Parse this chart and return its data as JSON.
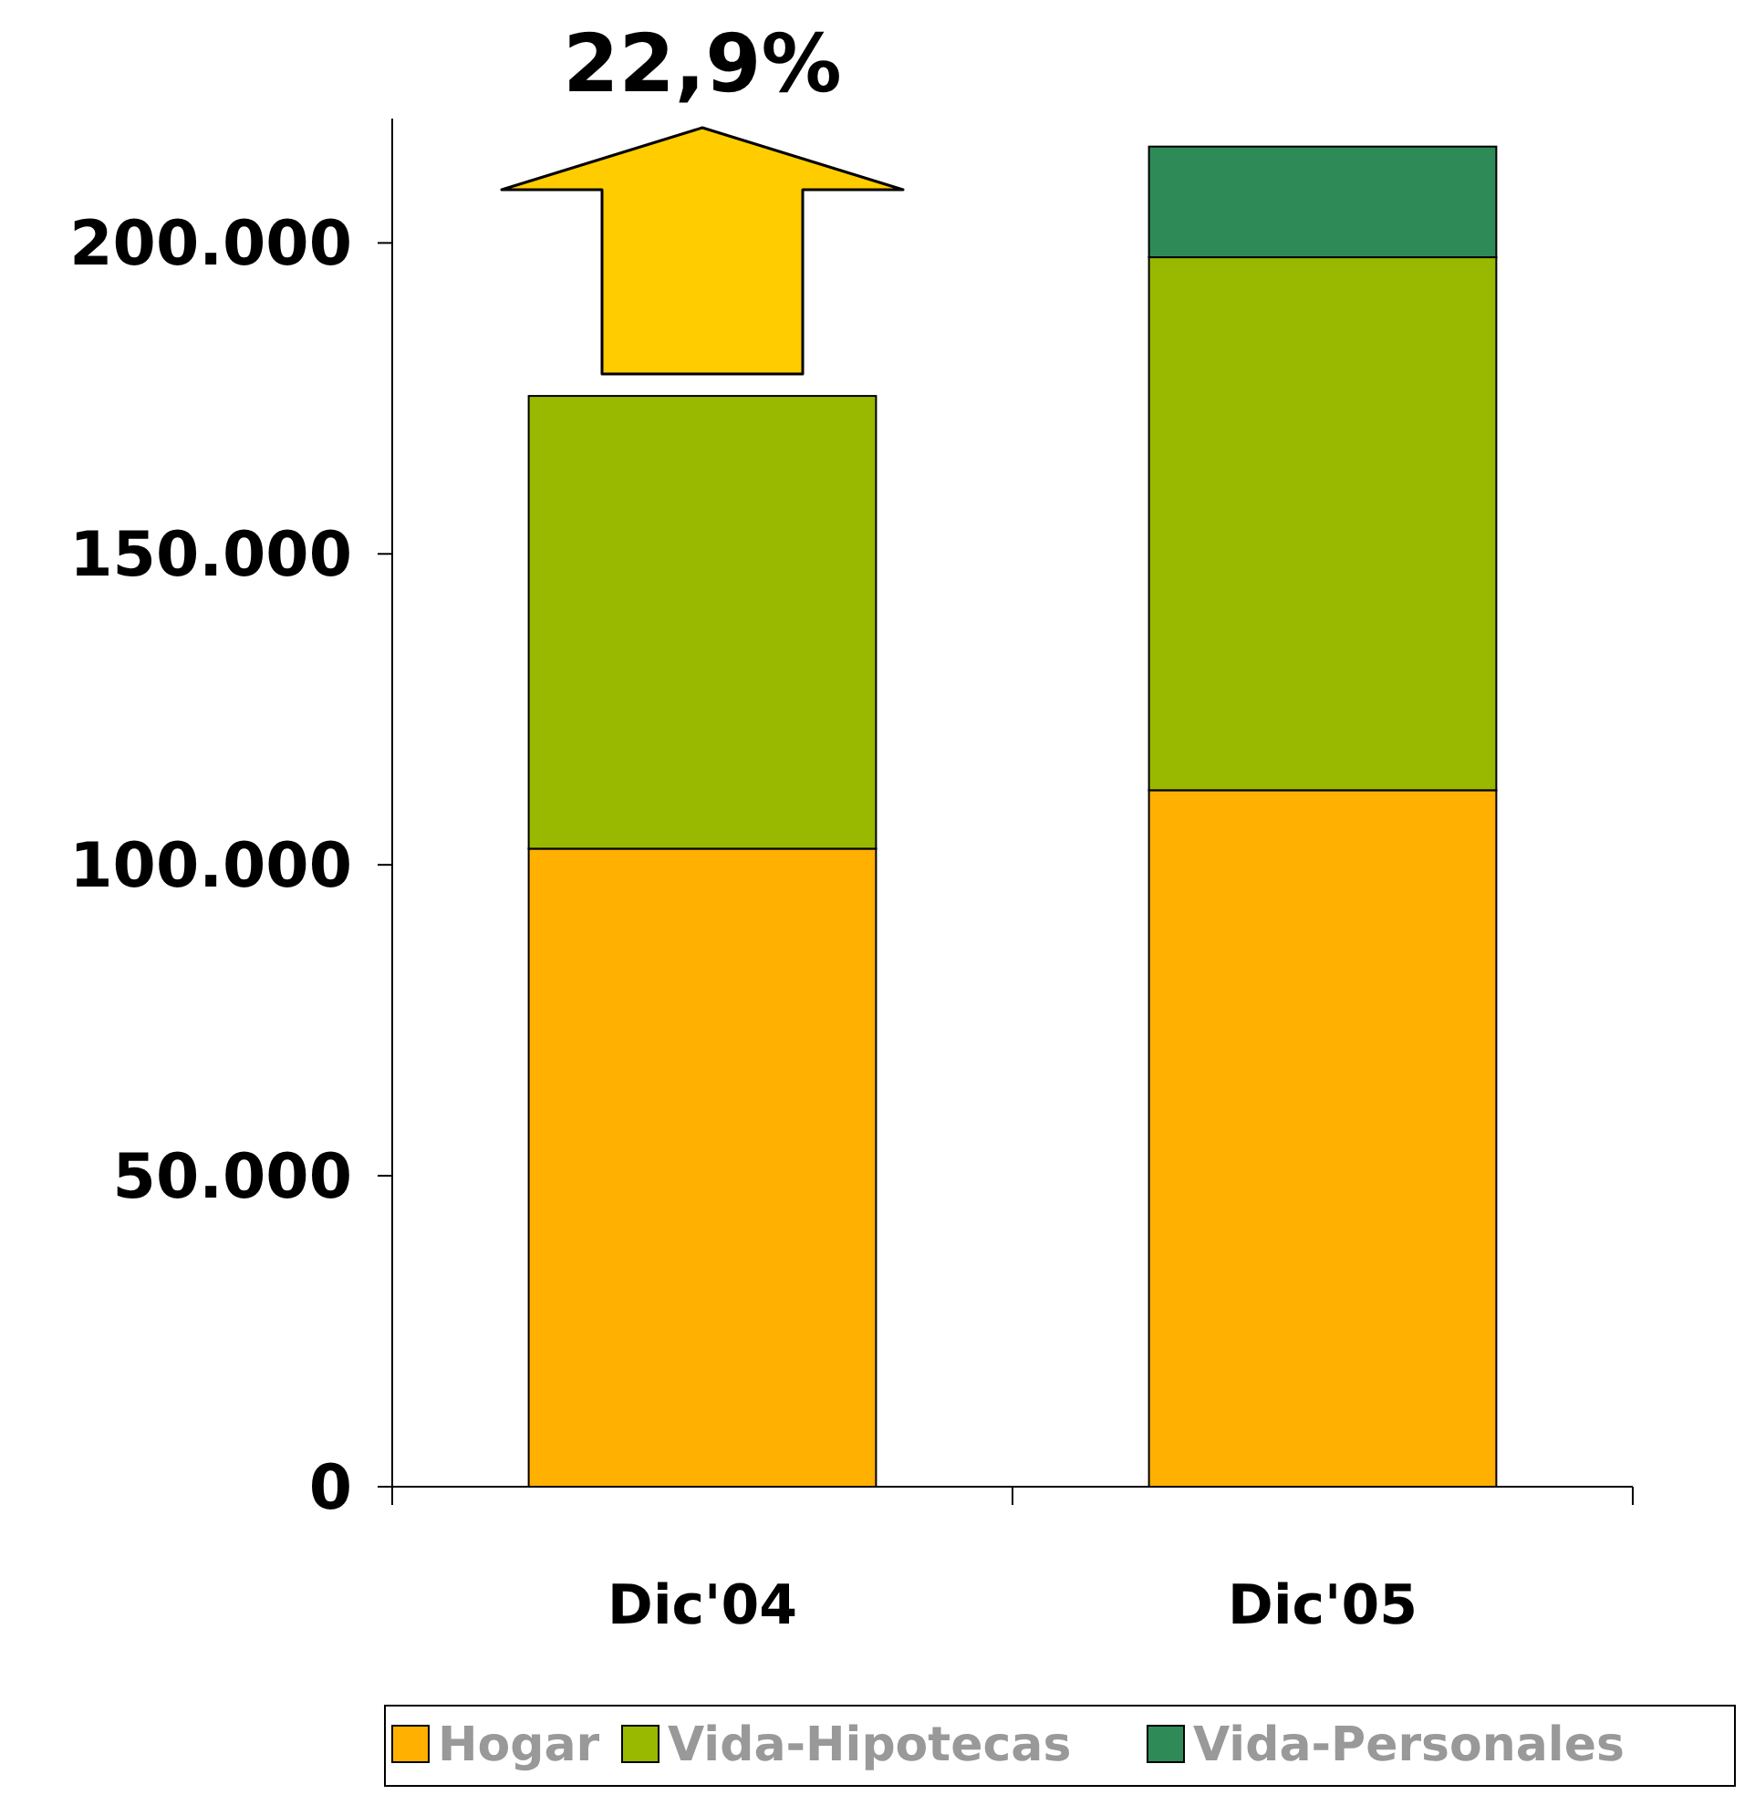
{
  "chart_data": {
    "type": "bar",
    "stacked": true,
    "categories": [
      "Dic'04",
      "Dic'05"
    ],
    "series": [
      {
        "name": "Hogar",
        "color": "#ffb000",
        "values": [
          102600,
          112000
        ]
      },
      {
        "name": "Vida-Hipotecas",
        "color": "#99b800",
        "values": [
          72800,
          85700
        ]
      },
      {
        "name": "Vida-Personales",
        "color": "#2e8b57",
        "values": [
          0,
          17800
        ]
      }
    ],
    "ylim": [
      0,
      220000
    ],
    "yticks": [
      {
        "value": 0,
        "label": "0"
      },
      {
        "value": 50000,
        "label": "50.000"
      },
      {
        "value": 100000,
        "label": "100.000"
      },
      {
        "value": 150000,
        "label": "150.000"
      },
      {
        "value": 200000,
        "label": "200.000"
      }
    ],
    "annotations": [
      "22,9%"
    ],
    "legend": "bottom",
    "grid": false
  }
}
